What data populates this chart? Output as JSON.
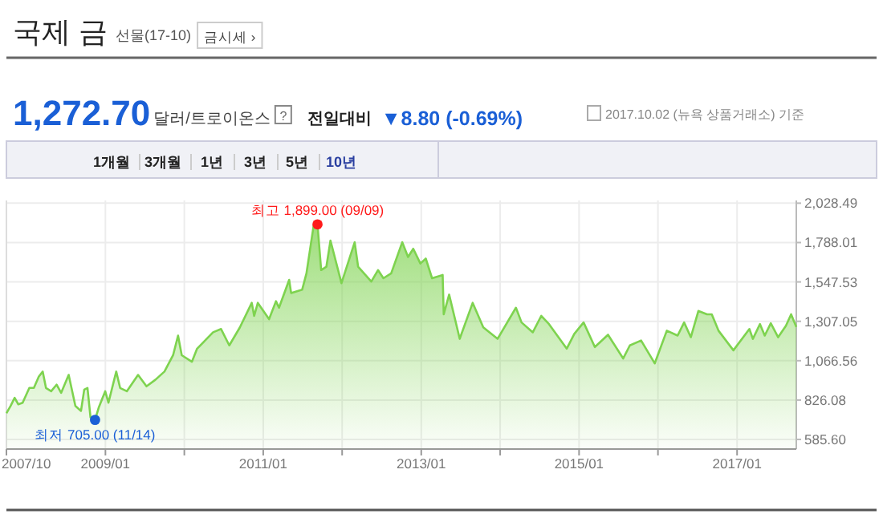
{
  "chart_data": {
    "type": "area",
    "title": "국제 금",
    "subtitle": "선물(17-10)",
    "annotations": [
      "금시세 ›",
      "1,272.70",
      "달러/트로이온스",
      "?",
      "전일대비",
      "▼8.80 (-0.69%)",
      "2017.10.02 (뉴욕 상품거래소) 기준",
      "1개월",
      "3개월",
      "1년",
      "3년",
      "5년",
      "10년",
      {
        "text": "최고 1,899.00 (09/09)",
        "x": "2011-09-09",
        "y": 1899
      },
      {
        "text": "최저 705.00 (11/14)",
        "x": "2008-11-14",
        "y": 705
      }
    ],
    "xlim": [
      "2007-10-01",
      "2017-10-02"
    ],
    "xticks": [
      {
        "value": "2007-10",
        "label": "2007/10"
      },
      {
        "value": "2009-01",
        "label": "2009/01"
      },
      {
        "value": "2010-01",
        "label": null
      },
      {
        "value": "2011-01",
        "label": "2011/01"
      },
      {
        "value": "2012-01",
        "label": null
      },
      {
        "value": "2013-01",
        "label": "2013/01"
      },
      {
        "value": "2014-01",
        "label": null
      },
      {
        "value": "2015-01",
        "label": "2015/01"
      },
      {
        "value": "2016-01",
        "label": null
      },
      {
        "value": "2017-01",
        "label": "2017/01"
      }
    ],
    "ylim": [
      527,
      2045
    ],
    "yticks": [
      {
        "value": 585.6,
        "label": "585.60"
      },
      {
        "value": 826.08,
        "label": "826.08"
      },
      {
        "value": 1066.56,
        "label": "1,066.56"
      },
      {
        "value": 1307.05,
        "label": "1,307.05"
      },
      {
        "value": 1547.53,
        "label": "1,547.53"
      },
      {
        "value": 1788.01,
        "label": "1,788.01"
      },
      {
        "value": 2028.49,
        "label": "2,028.49"
      }
    ],
    "grid": true,
    "series": [
      {
        "color": "#7ed34f",
        "x": [
          "2007-10-01",
          "2007-10-20",
          "2007-11-08",
          "2007-11-25",
          "2007-12-15",
          "2008-01-15",
          "2008-02-05",
          "2008-02-28",
          "2008-03-17",
          "2008-04-01",
          "2008-04-25",
          "2008-05-20",
          "2008-06-10",
          "2008-07-15",
          "2008-08-15",
          "2008-09-10",
          "2008-09-25",
          "2008-10-10",
          "2008-10-24",
          "2008-11-14",
          "2008-12-01",
          "2008-12-31",
          "2009-01-15",
          "2009-02-20",
          "2009-03-10",
          "2009-04-10",
          "2009-06-01",
          "2009-07-10",
          "2009-08-20",
          "2009-10-01",
          "2009-11-10",
          "2009-12-03",
          "2009-12-20",
          "2010-02-05",
          "2010-03-01",
          "2010-05-14",
          "2010-06-20",
          "2010-07-28",
          "2010-09-15",
          "2010-11-09",
          "2010-11-20",
          "2010-12-07",
          "2011-01-28",
          "2011-03-01",
          "2011-03-15",
          "2011-05-01",
          "2011-05-10",
          "2011-06-30",
          "2011-07-20",
          "2011-08-22",
          "2011-09-09",
          "2011-09-26",
          "2011-10-20",
          "2011-11-08",
          "2011-12-29",
          "2012-02-28",
          "2012-03-15",
          "2012-05-15",
          "2012-06-15",
          "2012-07-10",
          "2012-08-15",
          "2012-10-05",
          "2012-11-01",
          "2012-11-25",
          "2012-12-28",
          "2013-01-22",
          "2013-02-20",
          "2013-04-10",
          "2013-04-15",
          "2013-05-10",
          "2013-06-28",
          "2013-08-27",
          "2013-10-15",
          "2013-12-20",
          "2014-03-15",
          "2014-04-10",
          "2014-06-01",
          "2014-07-10",
          "2014-08-15",
          "2014-11-05",
          "2014-12-10",
          "2015-01-22",
          "2015-03-15",
          "2015-05-15",
          "2015-07-24",
          "2015-08-24",
          "2015-10-15",
          "2015-12-17",
          "2016-02-11",
          "2016-04-01",
          "2016-05-01",
          "2016-06-01",
          "2016-07-06",
          "2016-08-15",
          "2016-09-06",
          "2016-10-07",
          "2016-12-15",
          "2017-02-27",
          "2017-03-15",
          "2017-04-17",
          "2017-05-09",
          "2017-06-06",
          "2017-07-10",
          "2017-08-15",
          "2017-09-08",
          "2017-10-02"
        ],
        "values": [
          745,
          790,
          840,
          800,
          810,
          900,
          900,
          970,
          1000,
          900,
          880,
          920,
          870,
          980,
          790,
          760,
          890,
          900,
          720,
          705,
          780,
          880,
          810,
          1000,
          900,
          880,
          980,
          910,
          950,
          1000,
          1100,
          1220,
          1100,
          1060,
          1140,
          1240,
          1260,
          1160,
          1270,
          1420,
          1340,
          1420,
          1320,
          1430,
          1390,
          1560,
          1480,
          1500,
          1600,
          1890,
          1899,
          1620,
          1640,
          1800,
          1540,
          1790,
          1640,
          1550,
          1620,
          1570,
          1600,
          1790,
          1700,
          1750,
          1660,
          1690,
          1570,
          1590,
          1350,
          1470,
          1200,
          1420,
          1270,
          1200,
          1390,
          1300,
          1240,
          1340,
          1290,
          1140,
          1230,
          1300,
          1150,
          1225,
          1080,
          1160,
          1190,
          1050,
          1250,
          1220,
          1300,
          1210,
          1370,
          1350,
          1350,
          1250,
          1130,
          1260,
          1200,
          1290,
          1220,
          1295,
          1210,
          1280,
          1350,
          1272.7
        ]
      },
      {
        "type": "scatter",
        "color": "#ff1a1a",
        "marker": "circle",
        "x": [
          "2011-09-09"
        ],
        "values": [
          1899
        ]
      },
      {
        "type": "scatter",
        "color": "#1a5fd6",
        "marker": "circle",
        "x": [
          "2008-11-14"
        ],
        "values": [
          705
        ]
      }
    ]
  }
}
